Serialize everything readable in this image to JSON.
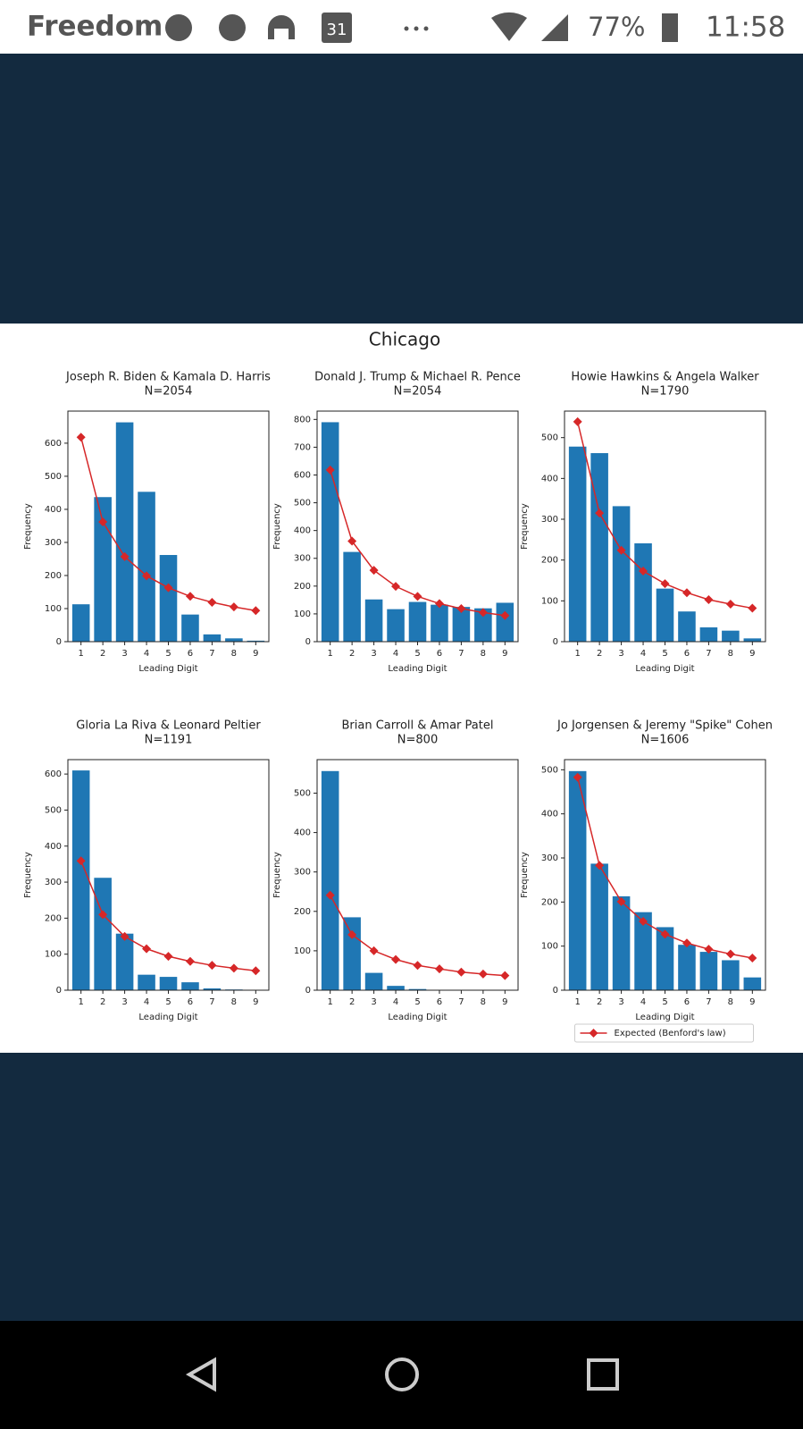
{
  "status_bar": {
    "carrier": "Freedom",
    "calendar": "31",
    "battery": "77%",
    "time": "11:58"
  },
  "figure": {
    "title": "Chicago"
  },
  "chart_data": [
    {
      "type": "bar",
      "title": "Joseph R. Biden & Kamala D. Harris",
      "subtitle": "N=2054",
      "xlabel": "Leading Digit",
      "ylabel": "Frequency",
      "categories": [
        "1",
        "2",
        "3",
        "4",
        "5",
        "6",
        "7",
        "8",
        "9"
      ],
      "ylim": [
        0,
        697
      ],
      "yticks": [
        0,
        100,
        200,
        300,
        400,
        500,
        600
      ],
      "series": [
        {
          "color": "#1f77b4",
          "values": [
            113,
            437,
            663,
            453,
            262,
            82,
            22,
            10,
            3
          ]
        },
        {
          "type": "line",
          "color": "#d62728",
          "values": [
            618,
            362,
            257,
            199,
            163,
            137,
            119,
            105,
            94
          ]
        }
      ]
    },
    {
      "type": "bar",
      "title": "Donald J. Trump & Michael R. Pence",
      "subtitle": "N=2054",
      "xlabel": "Leading Digit",
      "ylabel": "Frequency",
      "categories": [
        "1",
        "2",
        "3",
        "4",
        "5",
        "6",
        "7",
        "8",
        "9"
      ],
      "ylim": [
        0,
        830
      ],
      "yticks": [
        0,
        100,
        200,
        300,
        400,
        500,
        600,
        700,
        800
      ],
      "series": [
        {
          "color": "#1f77b4",
          "values": [
            790,
            323,
            152,
            117,
            143,
            133,
            125,
            120,
            140
          ]
        },
        {
          "type": "line",
          "color": "#d62728",
          "values": [
            618,
            362,
            257,
            199,
            163,
            137,
            119,
            105,
            94
          ]
        }
      ]
    },
    {
      "type": "bar",
      "title": "Howie Hawkins & Angela Walker",
      "subtitle": "N=1790",
      "xlabel": "Leading Digit",
      "ylabel": "Frequency",
      "categories": [
        "1",
        "2",
        "3",
        "4",
        "5",
        "6",
        "7",
        "8",
        "9"
      ],
      "ylim": [
        0,
        565
      ],
      "yticks": [
        0,
        100,
        200,
        300,
        400,
        500
      ],
      "series": [
        {
          "color": "#1f77b4",
          "values": [
            478,
            462,
            332,
            241,
            130,
            74,
            35,
            27,
            8
          ]
        },
        {
          "type": "line",
          "color": "#d62728",
          "values": [
            539,
            315,
            224,
            173,
            142,
            120,
            103,
            92,
            82
          ]
        }
      ]
    },
    {
      "type": "bar",
      "title": "Gloria La Riva & Leonard Peltier",
      "subtitle": "N=1191",
      "xlabel": "Leading Digit",
      "ylabel": "Frequency",
      "categories": [
        "1",
        "2",
        "3",
        "4",
        "5",
        "6",
        "7",
        "8",
        "9"
      ],
      "ylim": [
        0,
        640
      ],
      "yticks": [
        0,
        100,
        200,
        300,
        400,
        500,
        600
      ],
      "series": [
        {
          "color": "#1f77b4",
          "values": [
            610,
            312,
            157,
            43,
            37,
            22,
            5,
            2,
            1
          ]
        },
        {
          "type": "line",
          "color": "#d62728",
          "values": [
            359,
            210,
            149,
            115,
            94,
            80,
            69,
            61,
            54
          ]
        }
      ]
    },
    {
      "type": "bar",
      "title": "Brian Carroll & Amar Patel",
      "subtitle": "N=800",
      "xlabel": "Leading Digit",
      "ylabel": "Frequency",
      "categories": [
        "1",
        "2",
        "3",
        "4",
        "5",
        "6",
        "7",
        "8",
        "9"
      ],
      "ylim": [
        0,
        585
      ],
      "yticks": [
        0,
        100,
        200,
        300,
        400,
        500
      ],
      "series": [
        {
          "color": "#1f77b4",
          "values": [
            556,
            185,
            44,
            11,
            3,
            1,
            0,
            0,
            0
          ]
        },
        {
          "type": "line",
          "color": "#d62728",
          "values": [
            241,
            141,
            100,
            78,
            63,
            54,
            46,
            41,
            37
          ]
        }
      ]
    },
    {
      "type": "bar",
      "title": "Jo Jorgensen & Jeremy \"Spike\" Cohen",
      "subtitle": "N=1606",
      "xlabel": "Leading Digit",
      "ylabel": "Frequency",
      "categories": [
        "1",
        "2",
        "3",
        "4",
        "5",
        "6",
        "7",
        "8",
        "9"
      ],
      "ylim": [
        0,
        523
      ],
      "yticks": [
        0,
        100,
        200,
        300,
        400,
        500
      ],
      "legend": "below",
      "series": [
        {
          "color": "#1f77b4",
          "values": [
            497,
            287,
            213,
            177,
            143,
            103,
            87,
            68,
            29
          ]
        },
        {
          "type": "line",
          "name": "Expected (Benford's law)",
          "color": "#d62728",
          "values": [
            483,
            283,
            201,
            156,
            127,
            107,
            93,
            82,
            73
          ]
        }
      ]
    }
  ]
}
